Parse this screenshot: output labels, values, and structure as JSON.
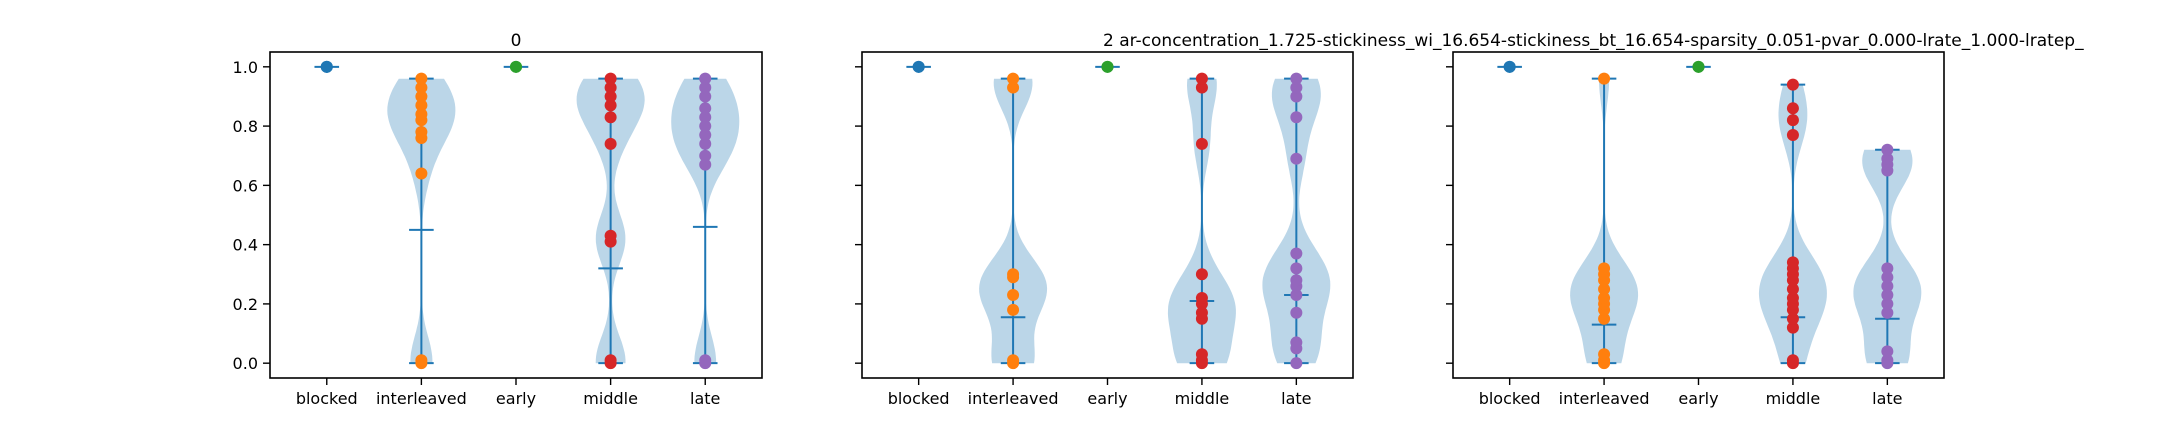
{
  "colors": {
    "violin_fill": "#1f77b4",
    "stat_line": "#1f77b4",
    "blocked": "#1f77b4",
    "interleaved": "#ff7f0e",
    "early": "#2ca02c",
    "middle": "#d62728",
    "late": "#9467bd"
  },
  "chart_data": [
    {
      "type": "violin",
      "title": "0",
      "categories": [
        "blocked",
        "interleaved",
        "early",
        "middle",
        "late"
      ],
      "ylim": [
        -0.05,
        1.05
      ],
      "yticks": [
        0.0,
        0.2,
        0.4,
        0.6,
        0.8,
        1.0
      ],
      "ytick_labels": [
        "0.0",
        "0.2",
        "0.4",
        "0.6",
        "0.8",
        "1.0"
      ],
      "series": [
        {
          "category": "blocked",
          "min": 1.0,
          "max": 1.0,
          "mean": 1.0,
          "points": [
            1.0,
            1.0,
            1.0
          ]
        },
        {
          "category": "interleaved",
          "min": 0.0,
          "max": 0.96,
          "mean": 0.45,
          "points": [
            0.0,
            0.01,
            0.64,
            0.76,
            0.78,
            0.82,
            0.84,
            0.87,
            0.9,
            0.93,
            0.96
          ]
        },
        {
          "category": "early",
          "min": 1.0,
          "max": 1.0,
          "mean": 1.0,
          "points": [
            1.0,
            1.0
          ]
        },
        {
          "category": "middle",
          "min": 0.0,
          "max": 0.96,
          "mean": 0.32,
          "points": [
            0.0,
            0.01,
            0.41,
            0.43,
            0.74,
            0.83,
            0.87,
            0.9,
            0.93,
            0.96
          ]
        },
        {
          "category": "late",
          "min": 0.0,
          "max": 0.96,
          "mean": 0.46,
          "points": [
            0.0,
            0.01,
            0.67,
            0.7,
            0.74,
            0.77,
            0.8,
            0.83,
            0.86,
            0.9,
            0.93,
            0.96
          ]
        }
      ]
    },
    {
      "type": "violin",
      "title": "2    ar-concentration_1.725-stickiness_wi_16.654-stickiness_bt_16.654-sparsity_0.051-pvar_0.000-lrate_1.000-lratep_",
      "categories": [
        "blocked",
        "interleaved",
        "early",
        "middle",
        "late"
      ],
      "ylim": [
        -0.05,
        1.05
      ],
      "series": [
        {
          "category": "blocked",
          "min": 1.0,
          "max": 1.0,
          "mean": 1.0,
          "points": [
            1.0,
            1.0
          ]
        },
        {
          "category": "interleaved",
          "min": 0.0,
          "max": 0.96,
          "mean": 0.155,
          "points": [
            0.0,
            0.01,
            0.18,
            0.23,
            0.29,
            0.3,
            0.93,
            0.96
          ]
        },
        {
          "category": "early",
          "min": 1.0,
          "max": 1.0,
          "mean": 1.0,
          "points": [
            1.0,
            1.0
          ]
        },
        {
          "category": "middle",
          "min": 0.0,
          "max": 0.96,
          "mean": 0.21,
          "points": [
            0.0,
            0.01,
            0.03,
            0.15,
            0.17,
            0.2,
            0.22,
            0.3,
            0.74,
            0.93,
            0.96
          ]
        },
        {
          "category": "late",
          "min": 0.0,
          "max": 0.96,
          "mean": 0.23,
          "points": [
            0.0,
            0.05,
            0.07,
            0.17,
            0.23,
            0.26,
            0.28,
            0.32,
            0.37,
            0.69,
            0.83,
            0.9,
            0.93,
            0.96
          ]
        }
      ]
    },
    {
      "type": "violin",
      "title": "",
      "categories": [
        "blocked",
        "interleaved",
        "early",
        "middle",
        "late"
      ],
      "ylim": [
        -0.05,
        1.05
      ],
      "series": [
        {
          "category": "blocked",
          "min": 1.0,
          "max": 1.0,
          "mean": 1.0,
          "points": [
            1.0,
            1.0
          ]
        },
        {
          "category": "interleaved",
          "min": 0.0,
          "max": 0.96,
          "mean": 0.13,
          "points": [
            0.0,
            0.01,
            0.03,
            0.15,
            0.18,
            0.2,
            0.22,
            0.25,
            0.28,
            0.3,
            0.32,
            0.96
          ]
        },
        {
          "category": "early",
          "min": 1.0,
          "max": 1.0,
          "mean": 1.0,
          "points": [
            1.0,
            1.0
          ]
        },
        {
          "category": "middle",
          "min": 0.0,
          "max": 0.94,
          "mean": 0.155,
          "points": [
            0.0,
            0.01,
            0.12,
            0.15,
            0.18,
            0.2,
            0.22,
            0.25,
            0.28,
            0.3,
            0.32,
            0.34,
            0.77,
            0.82,
            0.86,
            0.94
          ]
        },
        {
          "category": "late",
          "min": 0.0,
          "max": 0.72,
          "mean": 0.15,
          "points": [
            0.0,
            0.01,
            0.04,
            0.17,
            0.2,
            0.23,
            0.26,
            0.29,
            0.32,
            0.65,
            0.67,
            0.69,
            0.72
          ]
        }
      ]
    }
  ]
}
